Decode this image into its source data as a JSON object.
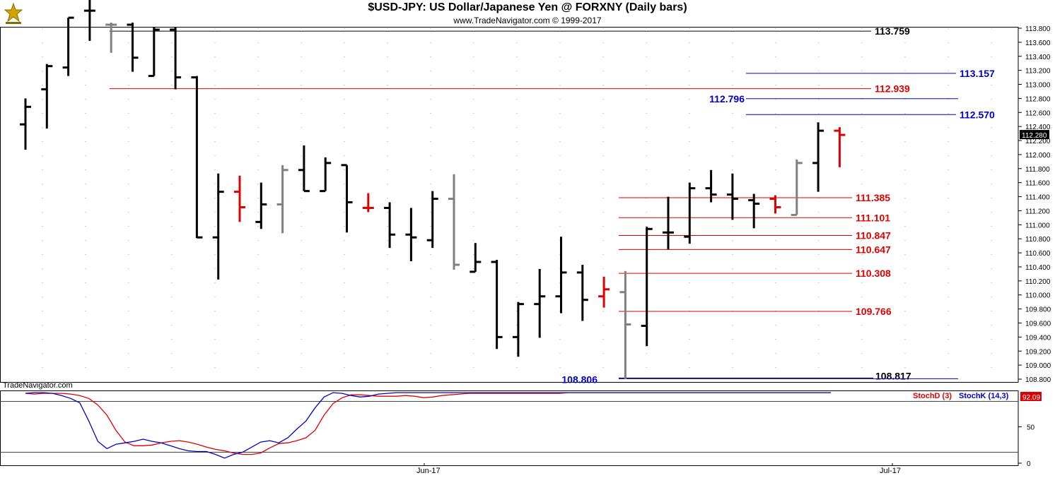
{
  "header": {
    "title": "$USD-JPY:  US Dollar/Japanese Yen @ FORXNY  (Daily bars)",
    "subtitle": "www.TradeNavigator.com © 1999-2017"
  },
  "watermark": "TradeNavigator.com",
  "x_labels": [
    "Jun-17",
    "Jul-17"
  ],
  "colors": {
    "bar_black": "#000000",
    "bar_grey": "#808080",
    "bar_red": "#e00000",
    "level_red": "#e00000",
    "level_blue": "#0000cc",
    "level_black": "#000000",
    "stochD": "#e00000",
    "stochK": "#0000cc",
    "price_box": "#000000",
    "stoch_box": "#e00000"
  },
  "chart_data": [
    {
      "type": "ohlc",
      "title": "$USD-JPY:  US Dollar/Japanese Yen @ FORXNY  (Daily bars)",
      "ylim": [
        108.76,
        113.82
      ],
      "y_ticks": [
        "108.800",
        "109.000",
        "109.200",
        "109.400",
        "109.600",
        "109.800",
        "110.000",
        "110.200",
        "110.400",
        "110.600",
        "110.800",
        "111.000",
        "111.200",
        "111.400",
        "111.600",
        "111.800",
        "112.000",
        "112.200",
        "112.400",
        "112.600",
        "112.800",
        "113.000",
        "113.200",
        "113.400",
        "113.600",
        "113.800"
      ],
      "last_price": "112.280",
      "bars": [
        {
          "o": 112.43,
          "h": 112.8,
          "l": 112.07,
          "c": 112.68,
          "color": "black"
        },
        {
          "o": 112.93,
          "h": 113.29,
          "l": 112.37,
          "c": 113.26,
          "color": "black"
        },
        {
          "o": 113.24,
          "h": 113.95,
          "l": 113.12,
          "c": 113.95,
          "color": "black"
        },
        {
          "o": 114.05,
          "h": 114.25,
          "l": 113.62,
          "c": 114.05,
          "color": "black"
        },
        {
          "o": 113.85,
          "h": 113.88,
          "l": 113.45,
          "c": 113.85,
          "color": "grey"
        },
        {
          "o": 113.85,
          "h": 113.88,
          "l": 113.18,
          "c": 113.38,
          "color": "black"
        },
        {
          "o": 113.12,
          "h": 113.82,
          "l": 113.12,
          "c": 113.78,
          "color": "black"
        },
        {
          "o": 113.78,
          "h": 113.82,
          "l": 112.93,
          "c": 113.1,
          "color": "black"
        },
        {
          "o": 113.1,
          "h": 113.12,
          "l": 110.81,
          "c": 110.82,
          "color": "black"
        },
        {
          "o": 110.82,
          "h": 111.73,
          "l": 110.22,
          "c": 111.47,
          "color": "black"
        },
        {
          "o": 111.47,
          "h": 111.7,
          "l": 111.04,
          "c": 111.25,
          "color": "red"
        },
        {
          "o": 111.04,
          "h": 111.6,
          "l": 110.94,
          "c": 111.29,
          "color": "black"
        },
        {
          "o": 111.29,
          "h": 111.85,
          "l": 110.88,
          "c": 111.78,
          "color": "grey"
        },
        {
          "o": 111.78,
          "h": 112.13,
          "l": 111.48,
          "c": 111.48,
          "color": "black"
        },
        {
          "o": 111.48,
          "h": 111.96,
          "l": 111.48,
          "c": 111.88,
          "color": "black"
        },
        {
          "o": 111.85,
          "h": 111.85,
          "l": 110.89,
          "c": 111.32,
          "color": "black"
        },
        {
          "o": 111.24,
          "h": 111.45,
          "l": 111.18,
          "c": 111.24,
          "color": "red"
        },
        {
          "o": 111.24,
          "h": 111.32,
          "l": 110.67,
          "c": 110.86,
          "color": "black"
        },
        {
          "o": 110.86,
          "h": 111.24,
          "l": 110.48,
          "c": 110.82,
          "color": "black"
        },
        {
          "o": 110.78,
          "h": 111.48,
          "l": 110.67,
          "c": 111.37,
          "color": "black"
        },
        {
          "o": 111.37,
          "h": 111.72,
          "l": 110.36,
          "c": 110.43,
          "color": "grey"
        },
        {
          "o": 110.33,
          "h": 110.74,
          "l": 110.33,
          "c": 110.47,
          "color": "black"
        },
        {
          "o": 110.47,
          "h": 110.5,
          "l": 109.23,
          "c": 109.4,
          "color": "black"
        },
        {
          "o": 109.4,
          "h": 109.9,
          "l": 109.12,
          "c": 109.87,
          "color": "black"
        },
        {
          "o": 109.87,
          "h": 110.37,
          "l": 109.39,
          "c": 109.98,
          "color": "black"
        },
        {
          "o": 109.98,
          "h": 110.83,
          "l": 109.74,
          "c": 110.32,
          "color": "black"
        },
        {
          "o": 110.32,
          "h": 110.43,
          "l": 109.63,
          "c": 109.93,
          "color": "black"
        },
        {
          "o": 109.98,
          "h": 110.26,
          "l": 109.82,
          "c": 110.08,
          "color": "red"
        },
        {
          "o": 110.04,
          "h": 110.34,
          "l": 108.8,
          "c": 109.58,
          "color": "grey"
        },
        {
          "o": 109.56,
          "h": 110.97,
          "l": 109.27,
          "c": 110.94,
          "color": "black"
        },
        {
          "o": 110.89,
          "h": 111.4,
          "l": 110.65,
          "c": 110.89,
          "color": "black"
        },
        {
          "o": 110.83,
          "h": 111.6,
          "l": 110.73,
          "c": 111.52,
          "color": "black"
        },
        {
          "o": 111.52,
          "h": 111.78,
          "l": 111.32,
          "c": 111.43,
          "color": "black"
        },
        {
          "o": 111.43,
          "h": 111.73,
          "l": 111.07,
          "c": 111.37,
          "color": "black"
        },
        {
          "o": 111.35,
          "h": 111.44,
          "l": 110.95,
          "c": 111.3,
          "color": "black"
        },
        {
          "o": 111.37,
          "h": 111.42,
          "l": 111.16,
          "c": 111.25,
          "color": "red"
        },
        {
          "o": 111.14,
          "h": 111.93,
          "l": 111.14,
          "c": 111.88,
          "color": "grey"
        },
        {
          "o": 111.88,
          "h": 112.46,
          "l": 111.47,
          "c": 112.34,
          "color": "black"
        },
        {
          "o": 112.34,
          "h": 112.39,
          "l": 111.82,
          "c": 112.28,
          "color": "red"
        }
      ],
      "levels": [
        {
          "value": 113.759,
          "label": "113.759",
          "color": "black",
          "span": "wide"
        },
        {
          "value": 113.157,
          "label": "113.157",
          "color": "blue",
          "span": "right"
        },
        {
          "value": 112.939,
          "label": "112.939",
          "color": "red",
          "span": "wide"
        },
        {
          "value": 112.796,
          "label": "112.796",
          "color": "blue",
          "span": "right_label_left"
        },
        {
          "value": 112.57,
          "label": "112.570",
          "color": "blue",
          "span": "right"
        },
        {
          "value": 111.385,
          "label": "111.385",
          "color": "red",
          "span": "mid"
        },
        {
          "value": 111.101,
          "label": "111.101",
          "color": "red",
          "span": "mid"
        },
        {
          "value": 110.847,
          "label": "110.847",
          "color": "red",
          "span": "mid"
        },
        {
          "value": 110.647,
          "label": "110.647",
          "color": "red",
          "span": "mid"
        },
        {
          "value": 110.308,
          "label": "110.308",
          "color": "red",
          "span": "mid"
        },
        {
          "value": 109.766,
          "label": "109.766",
          "color": "red",
          "span": "mid"
        },
        {
          "value": 108.817,
          "label": "108.817",
          "color": "black",
          "span": "bottom_black"
        },
        {
          "value": 108.806,
          "label": "108.806",
          "color": "blue",
          "span": "bottom_blue"
        }
      ]
    },
    {
      "type": "line",
      "ylim": [
        0,
        100
      ],
      "y_ticks": [
        "50",
        "0"
      ],
      "last_value": "92.09",
      "series": [
        {
          "name": "StochD (3)",
          "color": "red",
          "values": [
            96,
            95,
            96,
            96,
            96,
            95,
            93,
            89,
            80,
            66,
            45,
            29,
            24,
            24,
            25,
            28,
            30,
            31,
            29,
            26,
            22,
            19,
            17,
            14,
            12,
            12,
            14,
            21,
            27,
            28,
            31,
            35,
            45,
            66,
            82,
            90,
            94,
            94,
            93,
            92,
            92,
            92,
            93,
            92,
            90,
            91,
            93,
            94,
            95,
            96,
            96,
            96,
            96,
            96,
            96,
            96,
            96,
            96,
            96,
            96,
            97,
            97,
            97,
            97,
            97,
            97,
            97,
            97,
            97,
            97,
            97,
            97,
            97,
            97,
            97,
            97,
            97,
            97,
            97,
            97,
            97,
            97,
            97,
            97,
            97,
            97,
            97,
            97,
            97,
            97
          ]
        },
        {
          "name": "StochK (14,3)",
          "color": "blue",
          "values": [
            96,
            97,
            97,
            96,
            93,
            89,
            83,
            58,
            30,
            20,
            26,
            28,
            30,
            33,
            30,
            28,
            24,
            20,
            17,
            16,
            16,
            12,
            7,
            12,
            15,
            22,
            29,
            31,
            28,
            35,
            47,
            58,
            76,
            91,
            97,
            96,
            93,
            91,
            92,
            95,
            96,
            97,
            97,
            97,
            97,
            97,
            97,
            97,
            97,
            97,
            97,
            97,
            97,
            97,
            97,
            97,
            97,
            97,
            97,
            97,
            97,
            97,
            97,
            97,
            97,
            97,
            97,
            97,
            97,
            97,
            97,
            97,
            97,
            97,
            97,
            97,
            97,
            97,
            97,
            97,
            97,
            97,
            97,
            97,
            97,
            97,
            97,
            97,
            97,
            97
          ]
        }
      ]
    }
  ]
}
